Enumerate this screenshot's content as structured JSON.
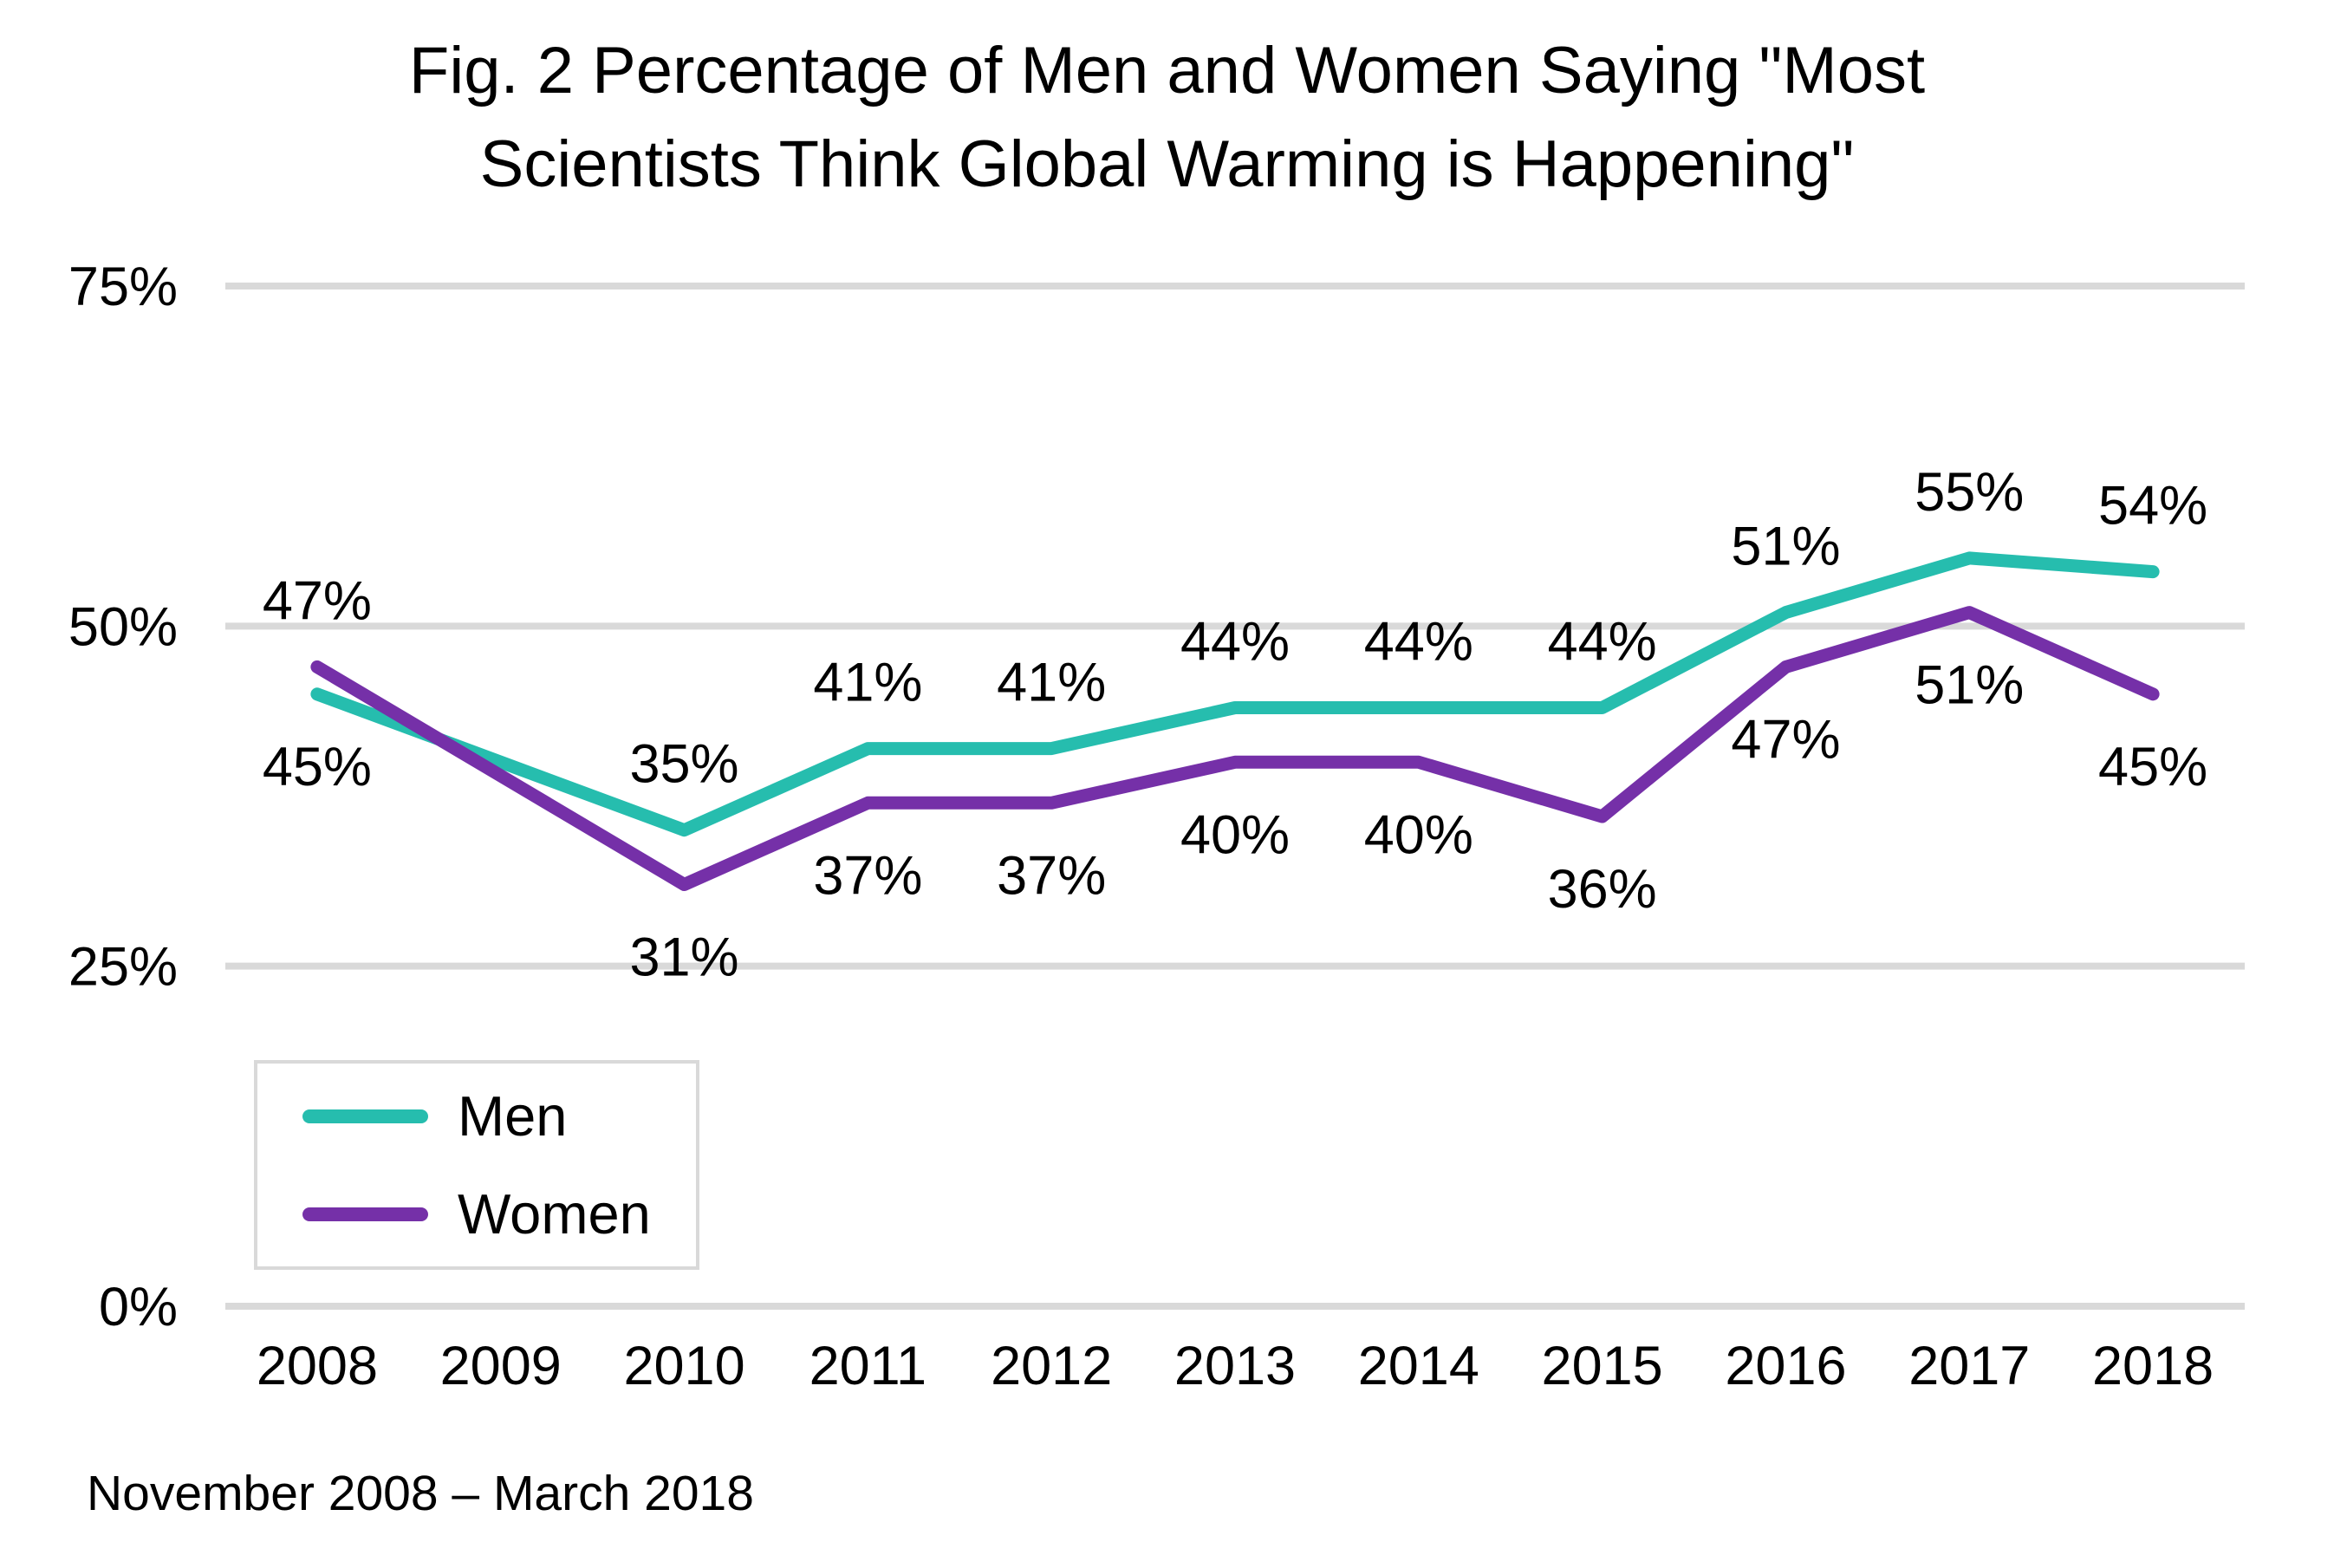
{
  "title": "Fig. 2 Percentage of Men and Women Saying \"Most Scientists Think Global Warming is Happening\"",
  "footnote": "November 2008 – March 2018",
  "colors": {
    "men_line": "#26bdae",
    "women_line": "#7530a8",
    "gridline": "#d9d9d9",
    "label_text": "#000000",
    "background": "#ffffff"
  },
  "chart_data": {
    "type": "line",
    "title": "Fig. 2 Percentage of Men and Women Saying \"Most Scientists Think Global Warming is Happening\"",
    "subtitle": "November 2008 – March 2018",
    "categories": [
      "2008",
      "2009",
      "2010",
      "2011",
      "2012",
      "2013",
      "2014",
      "2015",
      "2016",
      "2017",
      "2018"
    ],
    "series": [
      {
        "name": "Men",
        "color": "#26bdae",
        "values": [
          45,
          null,
          35,
          41,
          41,
          44,
          44,
          44,
          51,
          55,
          54
        ]
      },
      {
        "name": "Women",
        "color": "#7530a8",
        "values": [
          47,
          null,
          31,
          37,
          37,
          40,
          40,
          36,
          47,
          51,
          45
        ]
      }
    ],
    "data_labels": [
      "45%",
      "47%",
      "35%",
      "31%",
      "41%",
      "37%",
      "41%",
      "37%",
      "44%",
      "40%",
      "44%",
      "40%",
      "44%",
      "36%",
      "51%",
      "47%",
      "55%",
      "51%",
      "54%",
      "45%"
    ],
    "xlabel": "",
    "ylabel": "",
    "ylim": [
      0,
      75
    ],
    "yticks": [
      0,
      25,
      50,
      75
    ],
    "ytick_labels": [
      "0%",
      "25%",
      "50%",
      "75%"
    ],
    "grid": true,
    "legend_position": "bottom-left",
    "legend_entries": [
      "Men",
      "Women"
    ]
  }
}
